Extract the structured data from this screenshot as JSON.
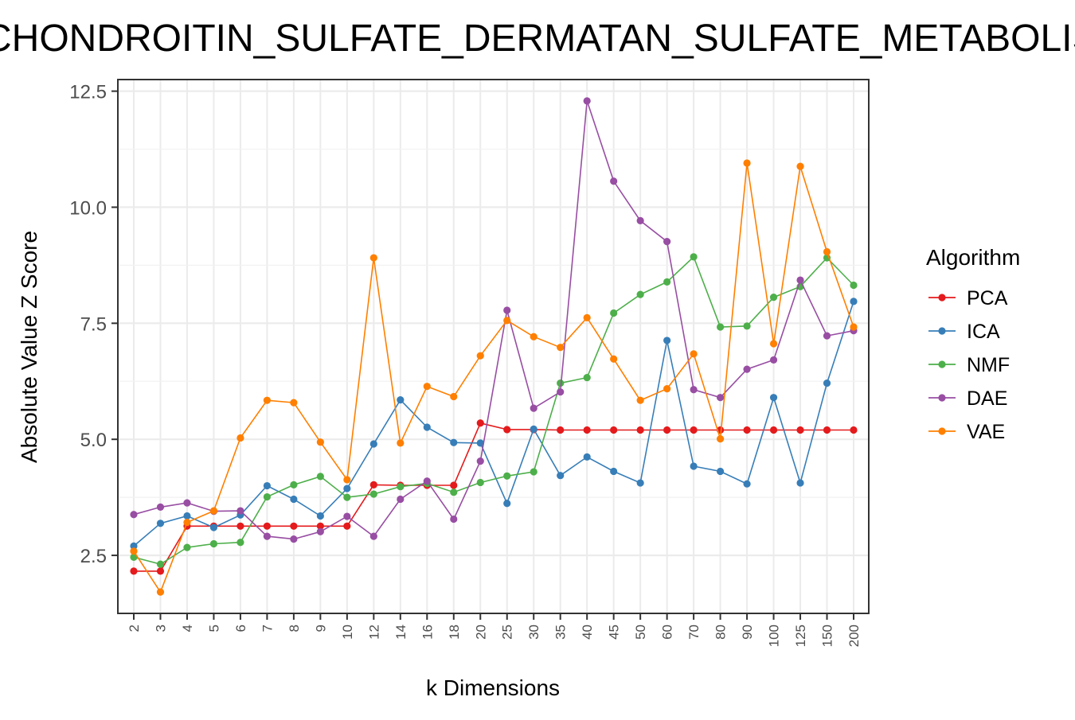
{
  "chart_data": {
    "type": "line",
    "title": "CHONDROITIN_SULFATE_DERMATAN_SULFATE_METABOLISM",
    "xlabel": "k Dimensions",
    "ylabel": "Absolute Value Z Score",
    "categories": [
      "2",
      "3",
      "4",
      "5",
      "6",
      "7",
      "8",
      "9",
      "10",
      "12",
      "14",
      "16",
      "18",
      "20",
      "25",
      "30",
      "35",
      "40",
      "45",
      "50",
      "60",
      "70",
      "80",
      "90",
      "100",
      "125",
      "150",
      "200"
    ],
    "ylim": [
      1.25,
      12.75
    ],
    "yticks": [
      2.5,
      5.0,
      7.5,
      10.0,
      12.5
    ],
    "ytick_labels": [
      "2.5",
      "5.0",
      "7.5",
      "10.0",
      "12.5"
    ],
    "grid": true,
    "legend": {
      "title": "Algorithm",
      "placement": "right"
    },
    "series": [
      {
        "name": "PCA",
        "color": "#e41a1c",
        "values": [
          2.16,
          2.16,
          3.13,
          3.13,
          3.13,
          3.13,
          3.13,
          3.13,
          3.13,
          4.02,
          4.01,
          4.01,
          4.01,
          5.35,
          5.21,
          5.21,
          5.2,
          5.2,
          5.2,
          5.2,
          5.2,
          5.2,
          5.2,
          5.2,
          5.2,
          5.2,
          5.2,
          5.2
        ]
      },
      {
        "name": "ICA",
        "color": "#377eb8",
        "values": [
          2.7,
          3.19,
          3.35,
          3.1,
          3.37,
          4.0,
          3.71,
          3.35,
          3.94,
          4.9,
          5.85,
          5.26,
          4.93,
          4.92,
          3.62,
          5.22,
          4.22,
          4.62,
          4.31,
          4.06,
          7.13,
          4.42,
          4.31,
          4.04,
          5.9,
          4.06,
          6.21,
          7.97
        ]
      },
      {
        "name": "NMF",
        "color": "#4daf4a",
        "values": [
          2.46,
          2.31,
          2.67,
          2.75,
          2.78,
          3.76,
          4.02,
          4.2,
          3.75,
          3.82,
          3.98,
          4.05,
          3.86,
          4.07,
          4.21,
          4.3,
          6.21,
          6.33,
          7.72,
          8.12,
          8.39,
          8.93,
          7.42,
          7.44,
          8.06,
          8.29,
          8.91,
          8.32
        ]
      },
      {
        "name": "DAE",
        "color": "#984ea3",
        "values": [
          3.38,
          3.54,
          3.63,
          3.45,
          3.46,
          2.91,
          2.85,
          3.01,
          3.34,
          2.91,
          3.71,
          4.1,
          3.28,
          4.53,
          7.78,
          5.67,
          6.02,
          12.29,
          10.56,
          9.71,
          9.26,
          6.07,
          5.9,
          6.51,
          6.71,
          8.43,
          7.23,
          7.34
        ]
      },
      {
        "name": "VAE",
        "color": "#ff7f00",
        "values": [
          2.59,
          1.71,
          3.21,
          3.46,
          5.03,
          5.84,
          5.79,
          4.94,
          4.13,
          8.91,
          4.92,
          6.14,
          5.92,
          6.8,
          7.56,
          7.21,
          6.98,
          7.62,
          6.73,
          5.84,
          6.09,
          6.84,
          5.01,
          10.95,
          7.06,
          10.88,
          9.04,
          7.42
        ]
      }
    ]
  }
}
